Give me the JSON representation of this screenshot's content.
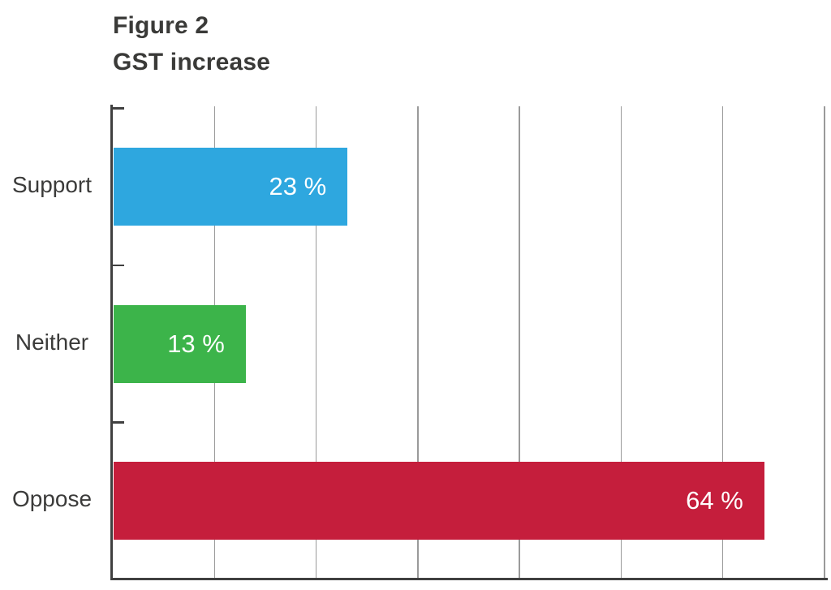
{
  "title": {
    "line1": "Figure 2",
    "line2": "GST increase"
  },
  "chart_data": {
    "type": "bar",
    "orientation": "horizontal",
    "title": "GST increase",
    "figure_label": "Figure 2",
    "categories": [
      "Support",
      "Neither",
      "Oppose"
    ],
    "values": [
      23,
      13,
      64
    ],
    "value_labels": [
      "23 %",
      "13 %",
      "64 %"
    ],
    "bar_colors": [
      "#2ea7df",
      "#3cb44a",
      "#c51e3c"
    ],
    "xlabel": "",
    "ylabel": "",
    "xlim": [
      0,
      70
    ],
    "gridline_step": 10,
    "grid": "vertical gridlines every 10 percent, no tick value labels shown",
    "legend": "none",
    "value_label_position": "inside-end",
    "colors": {
      "axis": "#404040",
      "gridline": "#9a9a9a",
      "category_label_text": "#3b3b3a",
      "value_label_text": "#ffffff",
      "title_text": "#3a3a38",
      "background": "#ffffff"
    }
  }
}
